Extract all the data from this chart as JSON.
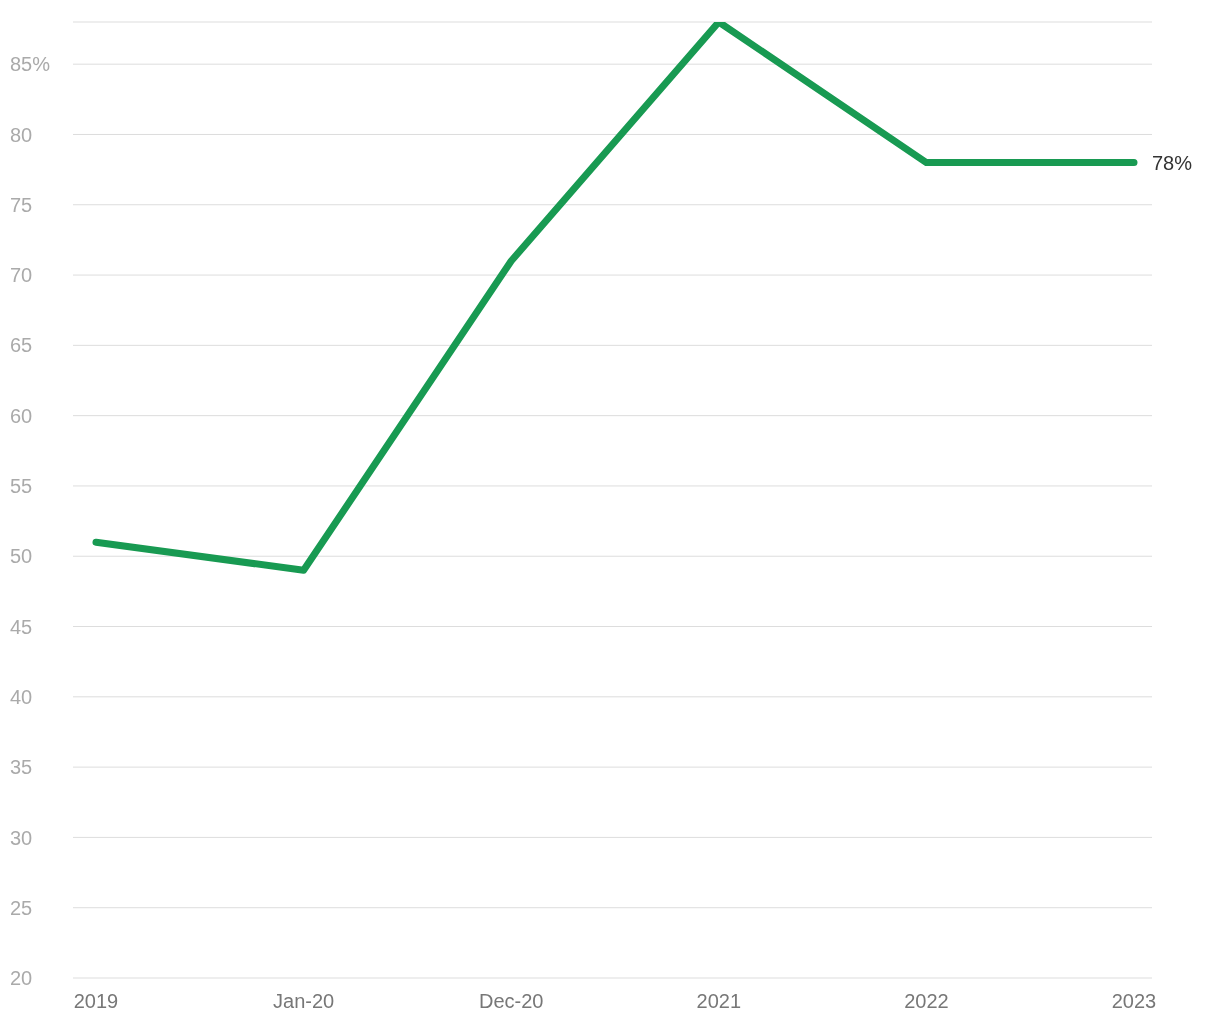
{
  "chart_data": {
    "type": "line",
    "categories": [
      "2019",
      "Jan-20",
      "Dec-20",
      "2021",
      "2022",
      "2023"
    ],
    "series": [
      {
        "color": "#189a52",
        "values": [
          51,
          49,
          71,
          88,
          78,
          78
        ],
        "value_labels": [
          null,
          null,
          null,
          null,
          null,
          "78%"
        ]
      }
    ],
    "ylim": [
      20,
      88
    ],
    "yticks": [
      20,
      25,
      30,
      35,
      40,
      45,
      50,
      55,
      60,
      65,
      70,
      75,
      80,
      {
        "value": 85,
        "label": "85%"
      }
    ],
    "grid": "y",
    "legend": false,
    "marker": "none",
    "line_style": "solid"
  }
}
